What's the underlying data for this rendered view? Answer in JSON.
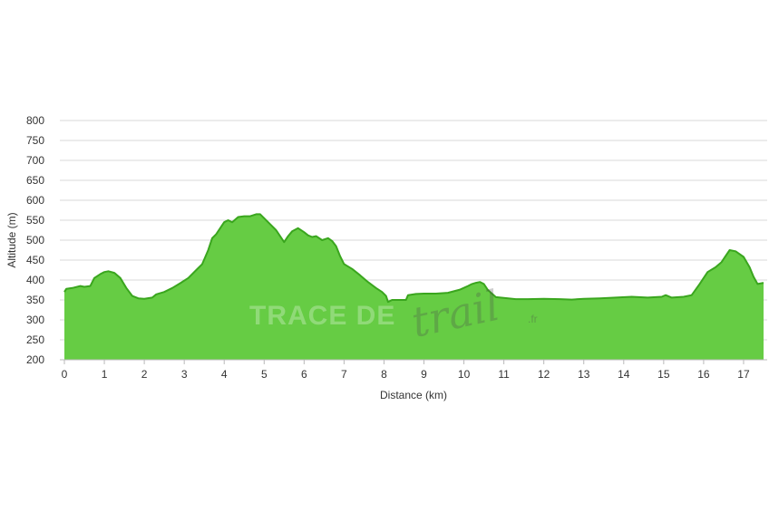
{
  "chart_data": {
    "type": "area",
    "xlabel": "Distance (km)",
    "ylabel": "Altitude (m)",
    "xlim": [
      0,
      17.5
    ],
    "ylim": [
      200,
      800
    ],
    "x_ticks": [
      0,
      1,
      2,
      3,
      4,
      5,
      6,
      7,
      8,
      9,
      10,
      11,
      12,
      13,
      14,
      15,
      16,
      17
    ],
    "y_ticks": [
      200,
      250,
      300,
      350,
      400,
      450,
      500,
      550,
      600,
      650,
      700,
      750,
      800
    ],
    "grid": "horizontal",
    "fill_color": "#66cc44",
    "line_color": "#3aa61e",
    "grid_color": "#d9d9d9",
    "series": [
      {
        "x": [
          0,
          0.05,
          0.2,
          0.4,
          0.5,
          0.65,
          0.75,
          0.9,
          1.0,
          1.1,
          1.25,
          1.4,
          1.55,
          1.7,
          1.85,
          2.0,
          2.2,
          2.3,
          2.5,
          2.7,
          2.9,
          3.1,
          3.3,
          3.45,
          3.6,
          3.7,
          3.8,
          3.9,
          4.0,
          4.1,
          4.2,
          4.35,
          4.5,
          4.65,
          4.8,
          4.9,
          5.0,
          5.1,
          5.3,
          5.5,
          5.6,
          5.7,
          5.85,
          6.0,
          6.1,
          6.2,
          6.3,
          6.45,
          6.6,
          6.7,
          6.8,
          6.9,
          7.0,
          7.2,
          7.4,
          7.6,
          7.8,
          7.95,
          8.05,
          8.1,
          8.2,
          8.4,
          8.55,
          8.6,
          8.8,
          9.0,
          9.3,
          9.6,
          9.9,
          10.1,
          10.2,
          10.3,
          10.4,
          10.5,
          10.6,
          10.8,
          11.0,
          11.3,
          11.6,
          12.0,
          12.4,
          12.7,
          13.0,
          13.4,
          13.8,
          14.2,
          14.6,
          14.8,
          14.95,
          15.05,
          15.2,
          15.5,
          15.7,
          15.9,
          16.1,
          16.3,
          16.45,
          16.55,
          16.65,
          16.8,
          17.0,
          17.15,
          17.25,
          17.35,
          17.5
        ],
        "y": [
          370,
          378,
          380,
          385,
          383,
          385,
          405,
          415,
          420,
          422,
          418,
          405,
          380,
          360,
          354,
          353,
          356,
          364,
          370,
          380,
          392,
          405,
          425,
          440,
          475,
          505,
          515,
          530,
          545,
          550,
          545,
          558,
          560,
          560,
          565,
          565,
          555,
          545,
          525,
          495,
          510,
          522,
          530,
          520,
          512,
          508,
          510,
          500,
          505,
          498,
          485,
          460,
          440,
          428,
          412,
          395,
          380,
          370,
          360,
          345,
          350,
          350,
          350,
          362,
          365,
          366,
          366,
          368,
          376,
          385,
          390,
          393,
          395,
          390,
          375,
          357,
          355,
          352,
          352,
          353,
          352,
          351,
          353,
          354,
          356,
          358,
          356,
          357,
          358,
          362,
          356,
          358,
          362,
          390,
          420,
          432,
          445,
          460,
          475,
          472,
          458,
          432,
          408,
          390,
          393
        ]
      }
    ]
  },
  "watermark": {
    "main_text": "TRACE DE",
    "script_text": "trail",
    "suffix": ".fr"
  }
}
